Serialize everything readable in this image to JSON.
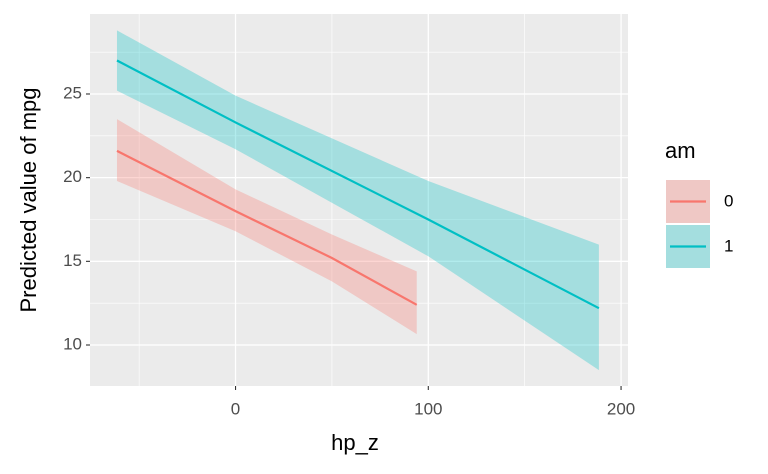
{
  "chart_data": {
    "type": "line",
    "xlabel": "hp_z",
    "ylabel": "Predicted value of mpg",
    "xlim": [
      -75.5,
      203.6
    ],
    "ylim": [
      7.55,
      29.78
    ],
    "xticks": [
      0,
      100,
      200
    ],
    "yticks": [
      10,
      15,
      20,
      25
    ],
    "xminor": [
      -50,
      50,
      150
    ],
    "yminor": [
      12.5,
      17.5,
      22.5,
      27.5
    ],
    "grid": true,
    "legend_title": "am",
    "legend_position": "right",
    "series": [
      {
        "name": "0",
        "color": "#F8766D",
        "x": [
          -61.5,
          0,
          50,
          94
        ],
        "values": [
          21.6,
          18.0,
          15.2,
          12.4
        ],
        "lower": [
          19.8,
          16.8,
          13.8,
          10.65
        ],
        "upper": [
          23.5,
          19.3,
          16.6,
          14.4
        ]
      },
      {
        "name": "1",
        "color": "#00BFC4",
        "x": [
          -61.5,
          0,
          100,
          188.5
        ],
        "values": [
          27.0,
          23.3,
          17.5,
          12.2
        ],
        "lower": [
          25.2,
          21.7,
          15.3,
          8.5
        ],
        "upper": [
          28.8,
          24.9,
          19.8,
          16.0
        ]
      }
    ]
  }
}
